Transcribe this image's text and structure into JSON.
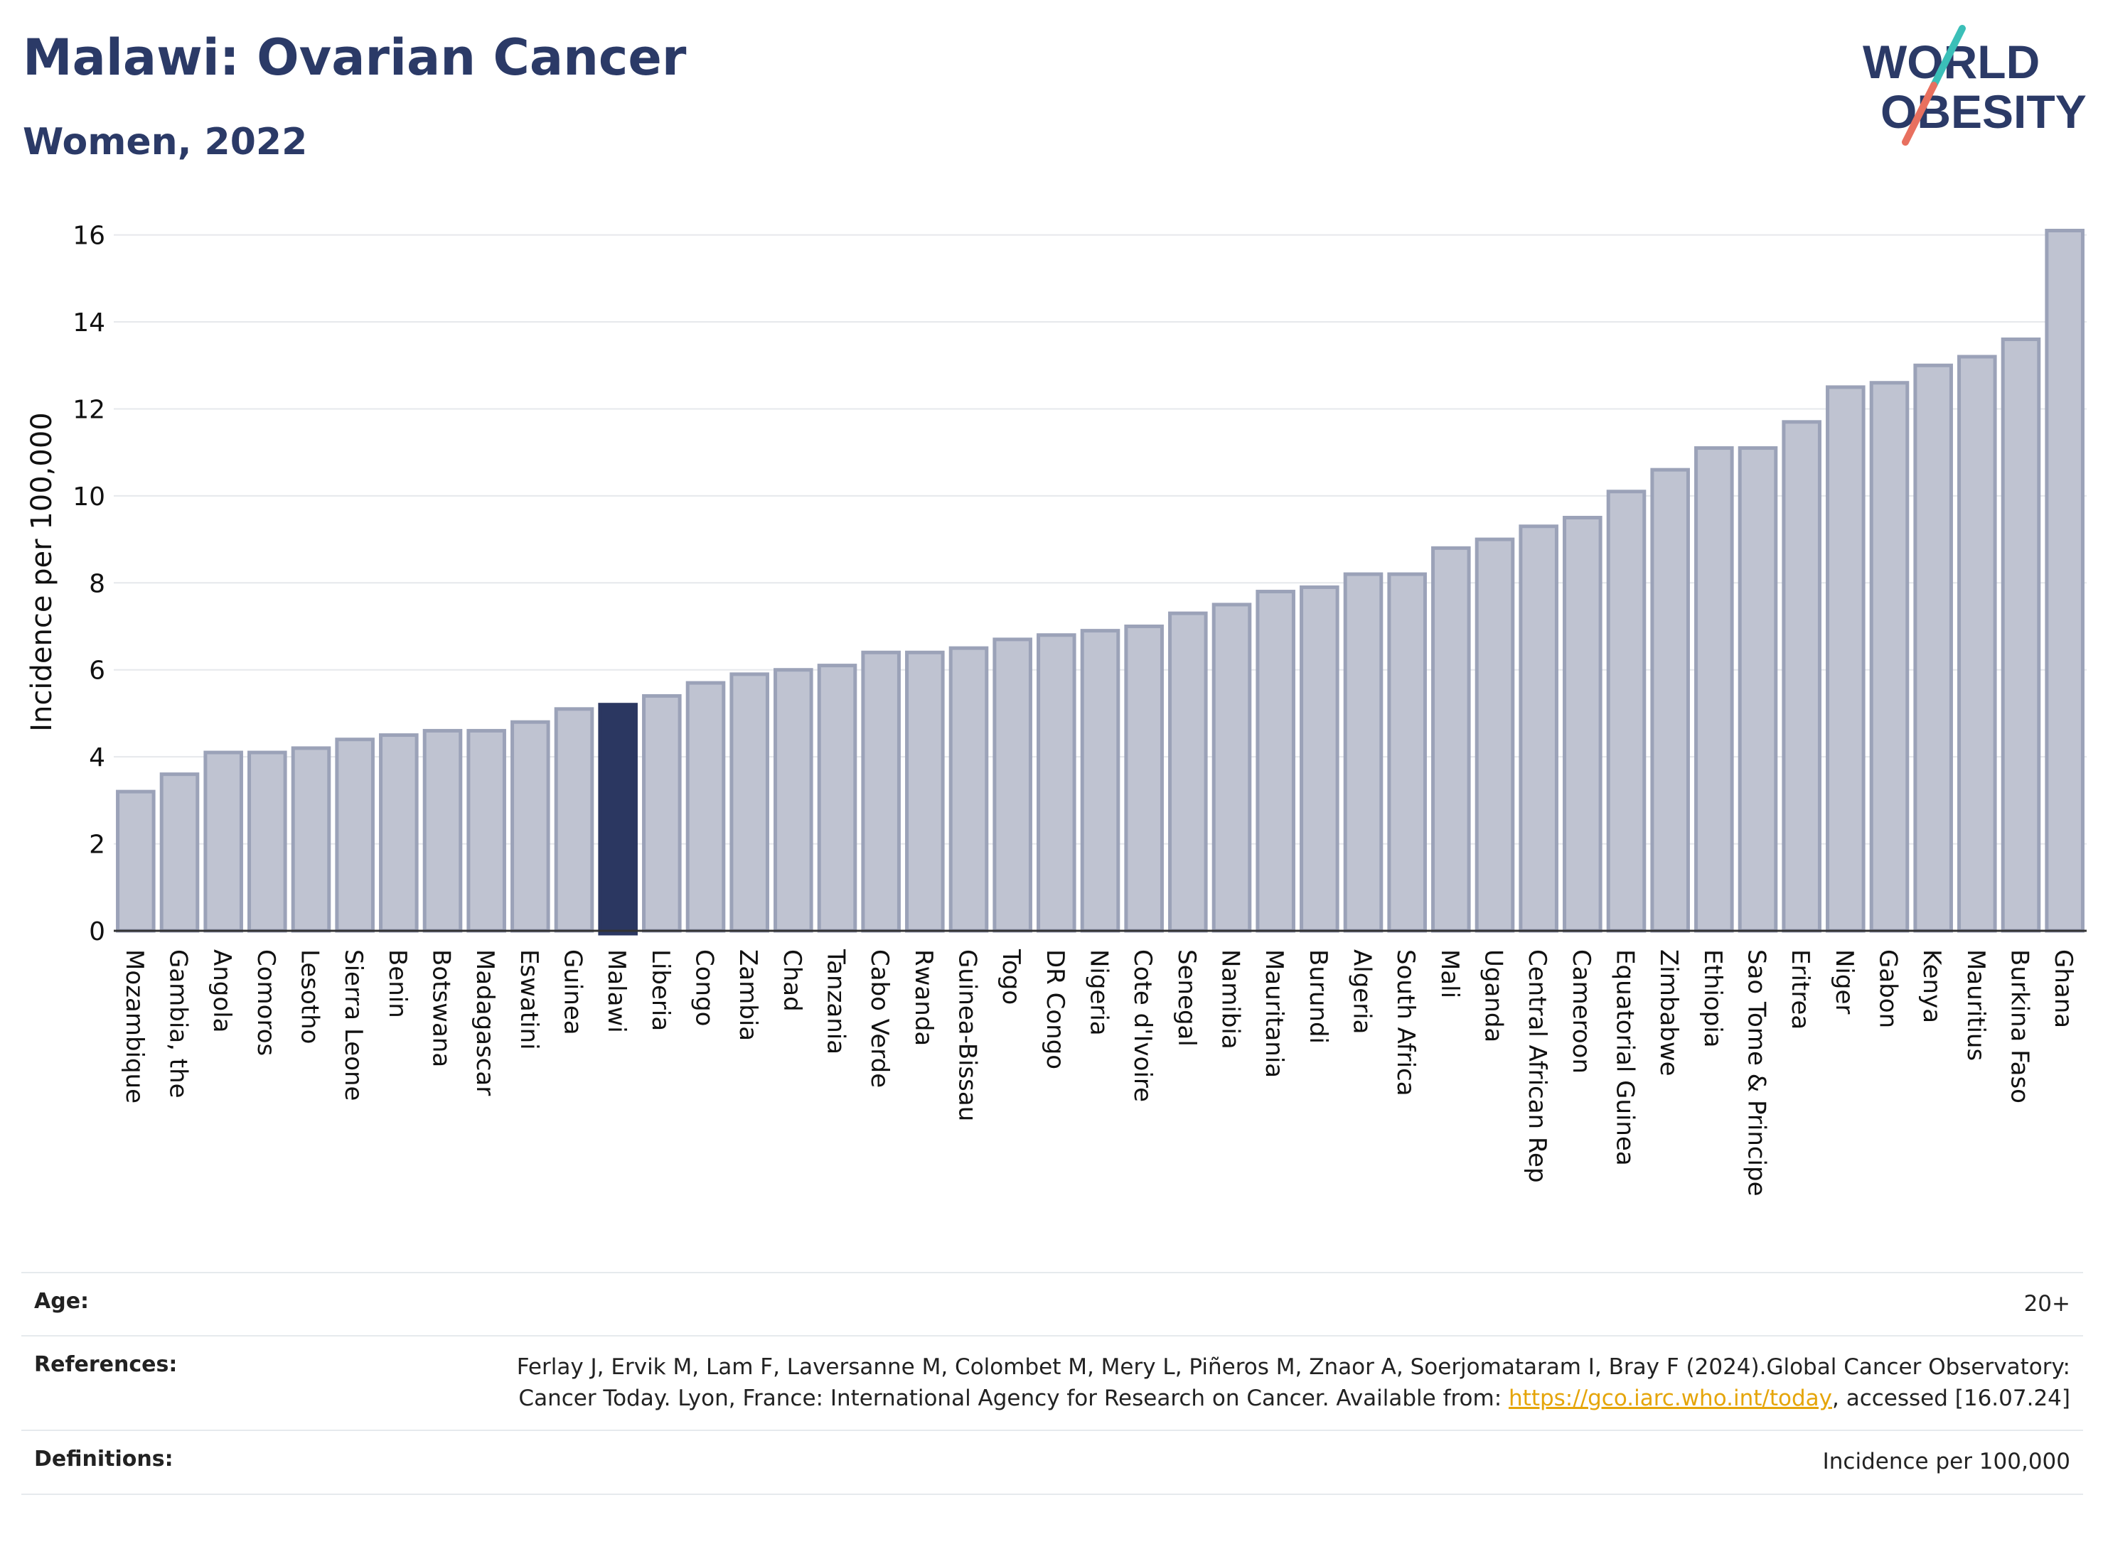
{
  "header": {
    "title": "Malawi: Ovarian Cancer",
    "subtitle": "Women, 2022"
  },
  "logo": {
    "line1": "WORLD",
    "line2": "OBESITY"
  },
  "colors": {
    "title": "#2b3a67",
    "bar": "#bfc3d1",
    "bar_border": "#9ba2b8",
    "highlight": "#2b3761",
    "grid": "#e6e8ec",
    "logo_text": "#2b3a67",
    "logo_teal": "#3bbfb8",
    "logo_coral": "#e8705f",
    "link": "#e5a50a"
  },
  "chart_data": {
    "type": "bar",
    "ylabel": "Incidence per 100,000",
    "ylim": [
      0,
      16.5
    ],
    "yticks": [
      0,
      2,
      4,
      6,
      8,
      10,
      12,
      14,
      16
    ],
    "grid": true,
    "highlight": "Malawi",
    "categories": [
      "Mozambique",
      "Gambia, the",
      "Angola",
      "Comoros",
      "Lesotho",
      "Sierra Leone",
      "Benin",
      "Botswana",
      "Madagascar",
      "Eswatini",
      "Guinea",
      "Malawi",
      "Liberia",
      "Congo",
      "Zambia",
      "Chad",
      "Tanzania",
      "Cabo Verde",
      "Rwanda",
      "Guinea-Bissau",
      "Togo",
      "DR Congo",
      "Nigeria",
      "Cote d'Ivoire",
      "Senegal",
      "Namibia",
      "Mauritania",
      "Burundi",
      "Algeria",
      "South Africa",
      "Mali",
      "Uganda",
      "Central African Rep",
      "Cameroon",
      "Equatorial Guinea",
      "Zimbabwe",
      "Ethiopia",
      "Sao Tome & Principe",
      "Eritrea",
      "Niger",
      "Gabon",
      "Kenya",
      "Mauritius",
      "Burkina Faso",
      "Ghana"
    ],
    "values": [
      3.2,
      3.6,
      4.1,
      4.1,
      4.2,
      4.4,
      4.5,
      4.6,
      4.6,
      4.8,
      5.1,
      5.2,
      5.4,
      5.7,
      5.9,
      6.0,
      6.1,
      6.4,
      6.4,
      6.5,
      6.7,
      6.8,
      6.9,
      7.0,
      7.3,
      7.5,
      7.8,
      7.9,
      8.2,
      8.2,
      8.8,
      9.0,
      9.3,
      9.5,
      10.1,
      10.6,
      11.1,
      11.1,
      11.7,
      12.5,
      12.6,
      13.0,
      13.2,
      13.6,
      16.1
    ]
  },
  "meta": {
    "age_label": "Age:",
    "age_value": "20+",
    "references_label": "References:",
    "references_text": "Ferlay J, Ervik M, Lam F, Laversanne M, Colombet M, Mery L, Piñeros M, Znaor A, Soerjomataram I, Bray F (2024).Global Cancer Observatory: Cancer Today. Lyon, France: International Agency for Research on Cancer. Available from: ",
    "references_link": "https://gco.iarc.who.int/today",
    "references_suffix": ", accessed [16.07.24]",
    "definitions_label": "Definitions:",
    "definitions_value": "Incidence per 100,000"
  }
}
